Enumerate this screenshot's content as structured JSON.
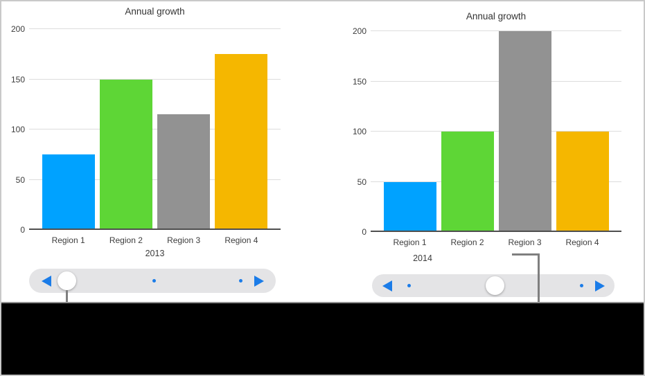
{
  "colors": {
    "bar_blue": "#00a2ff",
    "bar_green": "#5ed636",
    "bar_gray": "#929292",
    "bar_orange": "#f5b700",
    "slider_blue": "#1b7ce8",
    "slider_track": "#e4e4e6",
    "callout_gray": "#7f7f7f",
    "grid_gray": "#dcdcdc",
    "axis_gray": "#4e4e4e"
  },
  "chart_data": [
    {
      "type": "bar",
      "title": "Annual growth",
      "categories": [
        "Region 1",
        "Region 2",
        "Region 3",
        "Region 4"
      ],
      "values": [
        75,
        150,
        115,
        175
      ],
      "bar_colors": [
        "#00a2ff",
        "#5ed636",
        "#929292",
        "#f5b700"
      ],
      "xlabel": "2013",
      "ylabel": "",
      "ylim": [
        0,
        200
      ],
      "yticks": [
        0,
        50,
        100,
        150,
        200
      ],
      "grid": true,
      "legend": "none"
    },
    {
      "type": "bar",
      "title": "Annual growth",
      "categories": [
        "Region 1",
        "Region 2",
        "Region 3",
        "Region 4"
      ],
      "values": [
        50,
        100,
        200,
        100
      ],
      "bar_colors": [
        "#00a2ff",
        "#5ed636",
        "#929292",
        "#f5b700"
      ],
      "xlabel": "2014",
      "ylabel": "",
      "ylim": [
        0,
        200
      ],
      "yticks": [
        0,
        50,
        100,
        150,
        200
      ],
      "grid": true,
      "legend": "none"
    }
  ],
  "sliders": [
    {
      "thumb_position": "left",
      "dot_count": 2
    },
    {
      "thumb_position": "middle",
      "dot_count": 2
    }
  ]
}
